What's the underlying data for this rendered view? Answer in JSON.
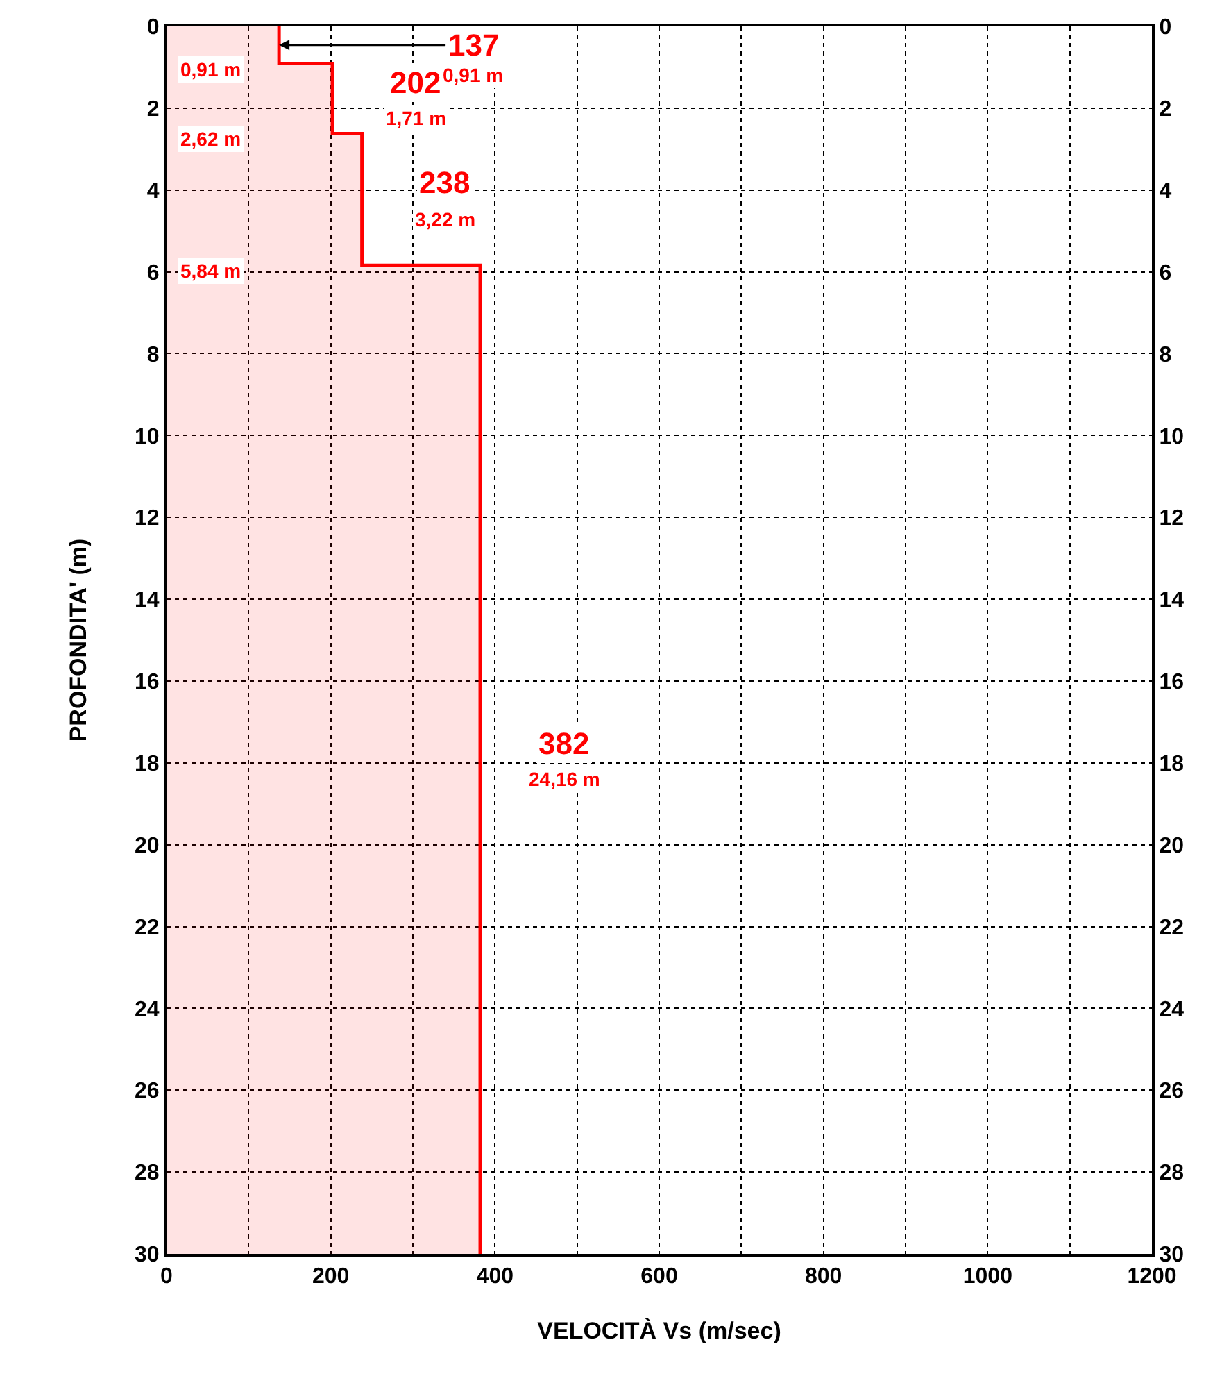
{
  "chart_data": {
    "type": "area",
    "orientation": "horizontal",
    "xlabel": "VELOCITÀ Vs (m/sec)",
    "ylabel": "PROFONDITA' (m)",
    "series": [
      {
        "color": "#ff0000",
        "x": [
          0,
          0.91,
          0.91,
          2.62,
          2.62,
          5.84,
          5.84,
          30
        ],
        "values": [
          137,
          137,
          202,
          202,
          238,
          238,
          382,
          382
        ]
      }
    ],
    "xlim": [
      0,
      1200
    ],
    "xticks": [
      0,
      {
        "value": 100,
        "label": null
      },
      200,
      {
        "value": 300,
        "label": null
      },
      400,
      {
        "value": 500,
        "label": null
      },
      600,
      {
        "value": 700,
        "label": null
      },
      800,
      {
        "value": 900,
        "label": null
      },
      1000,
      {
        "value": 1100,
        "label": null
      },
      1200
    ],
    "ylim": [
      30,
      0
    ],
    "yticks": [
      0,
      2,
      4,
      6,
      8,
      10,
      12,
      14,
      16,
      18,
      20,
      22,
      24,
      26,
      28,
      30
    ],
    "y2lim": [
      30,
      0
    ],
    "y2ticks": [
      0,
      2,
      4,
      6,
      8,
      10,
      12,
      14,
      16,
      18,
      20,
      22,
      24,
      26,
      28,
      30
    ],
    "grid": true,
    "line_style": "solid",
    "annotations": [
      {
        "text": "137",
        "x": 137,
        "y": 0.455
      },
      {
        "text": "0,91 m",
        "x": 137,
        "y": 0.455
      },
      {
        "text": "202",
        "x": 202,
        "y": 1.765
      },
      {
        "text": "1,71 m",
        "x": 202,
        "y": 1.765
      },
      {
        "text": "238",
        "x": 238,
        "y": 4.23
      },
      {
        "text": "3,22 m",
        "x": 238,
        "y": 4.23
      },
      {
        "text": "382",
        "x": 382,
        "y": 17.92
      },
      {
        "text": "24,16 m",
        "x": 382,
        "y": 17.92
      },
      "0,91 m",
      "2,62 m",
      "5,84 m"
    ]
  }
}
